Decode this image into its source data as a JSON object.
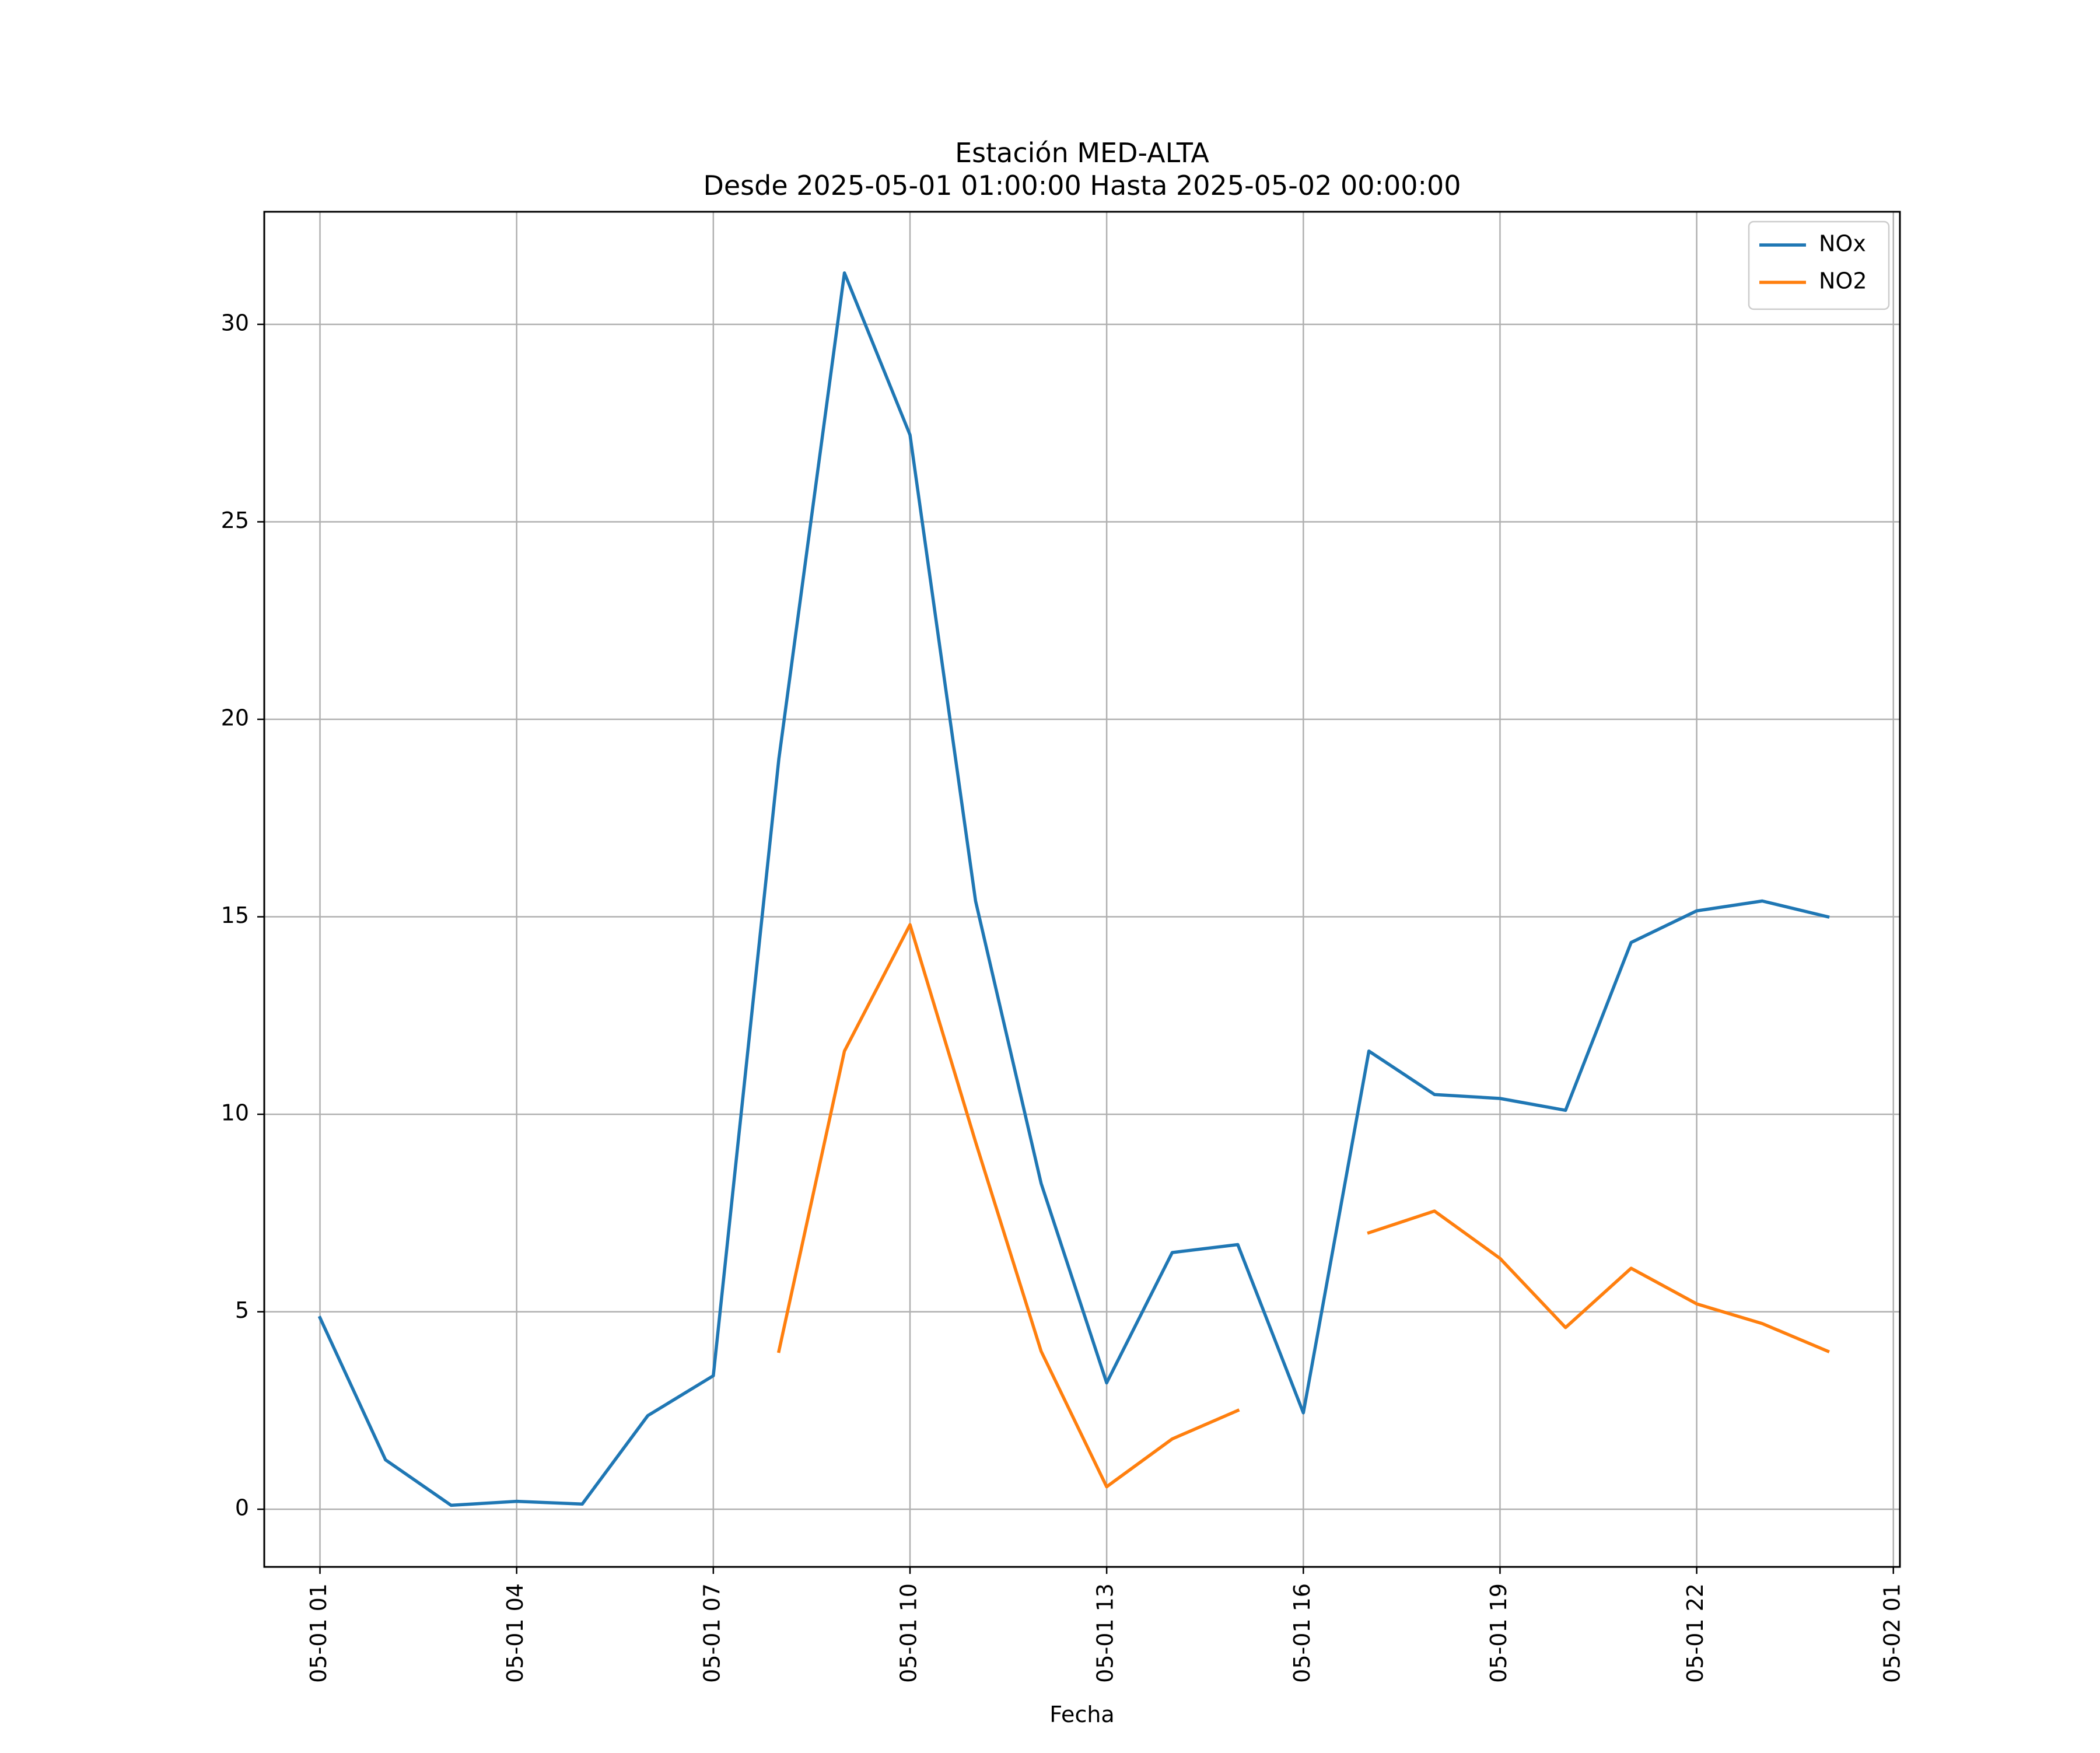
{
  "chart_data": {
    "type": "line",
    "title": "Estación MED-ALTA",
    "subtitle": "Desde 2025-05-01 01:00:00 Hasta 2025-05-02 00:00:00",
    "xlabel": "Fecha",
    "ylabel": "",
    "x": [
      "2025-05-01 01:00",
      "2025-05-01 02:00",
      "2025-05-01 03:00",
      "2025-05-01 04:00",
      "2025-05-01 05:00",
      "2025-05-01 06:00",
      "2025-05-01 07:00",
      "2025-05-01 08:00",
      "2025-05-01 09:00",
      "2025-05-01 10:00",
      "2025-05-01 11:00",
      "2025-05-01 12:00",
      "2025-05-01 13:00",
      "2025-05-01 14:00",
      "2025-05-01 15:00",
      "2025-05-01 16:00",
      "2025-05-01 17:00",
      "2025-05-01 18:00",
      "2025-05-01 19:00",
      "2025-05-01 20:00",
      "2025-05-01 21:00",
      "2025-05-01 22:00",
      "2025-05-01 23:00",
      "2025-05-02 00:00"
    ],
    "series": [
      {
        "name": "NOx",
        "color": "#1f77b4",
        "values": [
          4.85,
          1.25,
          0.1,
          0.2,
          0.13,
          2.37,
          3.38,
          19.0,
          31.3,
          27.2,
          15.4,
          8.25,
          3.2,
          6.5,
          6.7,
          2.44,
          11.6,
          10.5,
          10.4,
          10.1,
          14.35,
          15.15,
          15.4,
          15.0
        ]
      },
      {
        "name": "NO2",
        "color": "#ff7f0e",
        "values": [
          null,
          null,
          null,
          null,
          null,
          null,
          null,
          4.0,
          11.6,
          14.8,
          9.3,
          4.0,
          0.57,
          1.78,
          2.5,
          null,
          7.0,
          7.55,
          6.35,
          4.6,
          6.1,
          5.2,
          4.7,
          4.0
        ]
      }
    ],
    "x_ticks": [
      "05-01 01",
      "05-01 04",
      "05-01 07",
      "05-01 10",
      "05-01 13",
      "05-01 16",
      "05-01 19",
      "05-01 22",
      "05-02 01"
    ],
    "x_range": [
      "2025-05-01 00:09",
      "2025-05-02 01:06"
    ],
    "y_ticks": [
      0,
      5,
      10,
      15,
      20,
      25,
      30
    ],
    "ylim": [
      -1.46,
      32.85
    ],
    "grid": true,
    "legend": "top-right"
  }
}
